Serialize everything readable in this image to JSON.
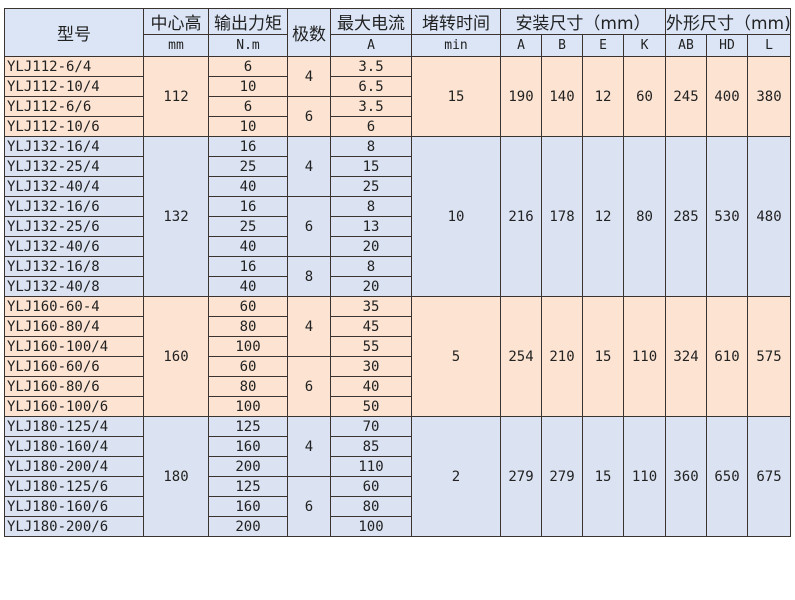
{
  "header": {
    "model": "型号",
    "center_height": "中心高",
    "center_height_unit": "mm",
    "torque": "输出力矩",
    "torque_unit": "N.m",
    "poles": "极数",
    "current": "最大电流",
    "current_unit": "A",
    "stall_time": "堵转时间",
    "stall_time_unit": "min",
    "install": "安装尺寸（mm）",
    "outline": "外形尺寸（mm)",
    "install_cols": [
      "A",
      "B",
      "E",
      "K"
    ],
    "outline_cols": [
      "AB",
      "HD",
      "L"
    ]
  },
  "groups": [
    {
      "models": [
        "YLJ112-6/4",
        "YLJ112-10/4",
        "YLJ112-6/6",
        "YLJ112-10/6"
      ],
      "center_height": "112",
      "torque": [
        "6",
        "10",
        "6",
        "10"
      ],
      "poles": [
        {
          "value": "4",
          "span": 2
        },
        {
          "value": "6",
          "span": 2
        }
      ],
      "current": [
        "3.5",
        "6.5",
        "3.5",
        "6"
      ],
      "stall_time": "15",
      "install": [
        "190",
        "140",
        "12",
        "60"
      ],
      "outline": [
        "245",
        "400",
        "380"
      ]
    },
    {
      "models": [
        "YLJ132-16/4",
        "YLJ132-25/4",
        "YLJ132-40/4",
        "YLJ132-16/6",
        "YLJ132-25/6",
        "YLJ132-40/6",
        "YLJ132-16/8",
        "YLJ132-40/8"
      ],
      "center_height": "132",
      "torque": [
        "16",
        "25",
        "40",
        "16",
        "25",
        "40",
        "16",
        "40"
      ],
      "poles": [
        {
          "value": "4",
          "span": 3
        },
        {
          "value": "6",
          "span": 3
        },
        {
          "value": "8",
          "span": 2
        }
      ],
      "current": [
        "8",
        "15",
        "25",
        "8",
        "13",
        "20",
        "8",
        "20"
      ],
      "stall_time": "10",
      "install": [
        "216",
        "178",
        "12",
        "80"
      ],
      "outline": [
        "285",
        "530",
        "480"
      ]
    },
    {
      "models": [
        "YLJ160-60-4",
        "YLJ160-80/4",
        "YLJ160-100/4",
        "YLJ160-60/6",
        "YLJ160-80/6",
        "YLJ160-100/6"
      ],
      "center_height": "160",
      "torque": [
        "60",
        "80",
        "100",
        "60",
        "80",
        "100"
      ],
      "poles": [
        {
          "value": "4",
          "span": 3
        },
        {
          "value": "6",
          "span": 3
        }
      ],
      "current": [
        "35",
        "45",
        "55",
        "30",
        "40",
        "50"
      ],
      "stall_time": "5",
      "install": [
        "254",
        "210",
        "15",
        "110"
      ],
      "outline": [
        "324",
        "610",
        "575"
      ]
    },
    {
      "models": [
        "YLJ180-125/4",
        "YLJ180-160/4",
        "YLJ180-200/4",
        "YLJ180-125/6",
        "YLJ180-160/6",
        "YLJ180-200/6"
      ],
      "center_height": "180",
      "torque": [
        "125",
        "160",
        "200",
        "125",
        "160",
        "200"
      ],
      "poles": [
        {
          "value": "4",
          "span": 3
        },
        {
          "value": "6",
          "span": 3
        }
      ],
      "current": [
        "70",
        "85",
        "110",
        "60",
        "80",
        "100"
      ],
      "stall_time": "2",
      "install": [
        "279",
        "279",
        "15",
        "110"
      ],
      "outline": [
        "360",
        "650",
        "675"
      ]
    }
  ]
}
